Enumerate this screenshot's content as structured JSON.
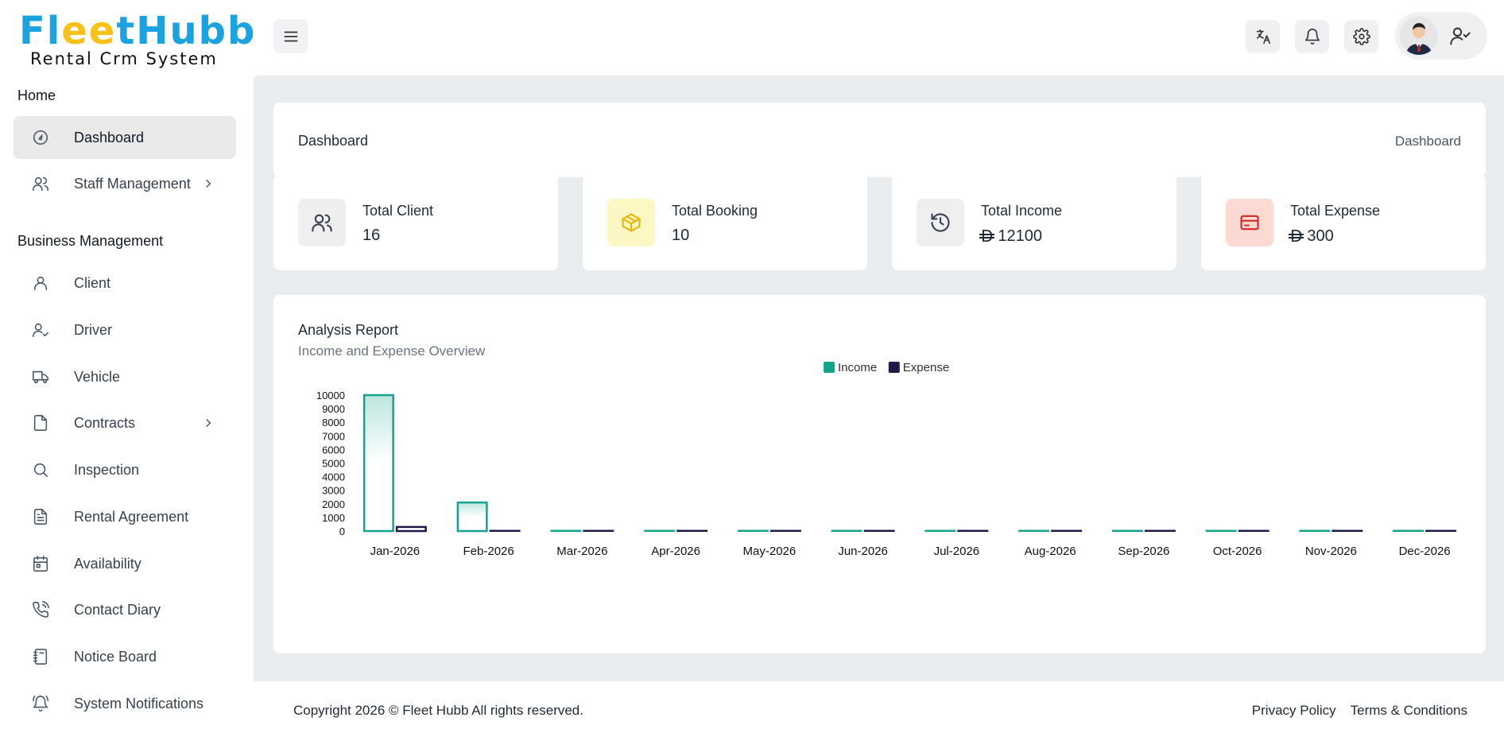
{
  "brand": {
    "logo_main": "FleetHubb",
    "logo_sub": "Rental Crm System"
  },
  "sidebar": {
    "sections": [
      {
        "title": "Home"
      },
      {
        "title": "Business Management"
      }
    ],
    "items": [
      {
        "label": "Dashboard",
        "icon": "gauge-icon"
      },
      {
        "label": "Staff Management",
        "icon": "users-icon"
      },
      {
        "label": "Client",
        "icon": "user-icon"
      },
      {
        "label": "Driver",
        "icon": "user-check-icon"
      },
      {
        "label": "Vehicle",
        "icon": "truck-icon"
      },
      {
        "label": "Contracts",
        "icon": "file-icon"
      },
      {
        "label": "Inspection",
        "icon": "search-icon"
      },
      {
        "label": "Rental Agreement",
        "icon": "file-text-icon"
      },
      {
        "label": "Availability",
        "icon": "calendar-icon"
      },
      {
        "label": "Contact Diary",
        "icon": "phone-icon"
      },
      {
        "label": "Notice Board",
        "icon": "notebook-icon"
      },
      {
        "label": "System Notifications",
        "icon": "bell-ring-icon"
      }
    ]
  },
  "breadcrumb": {
    "title": "Dashboard",
    "link": "Dashboard"
  },
  "stats": [
    {
      "label": "Total Client",
      "value": "16",
      "icon": "users-icon",
      "bg": "#efefef",
      "fg": "#374151"
    },
    {
      "label": "Total Booking",
      "value": "10",
      "icon": "box-icon",
      "bg": "#fdf7c3",
      "fg": "#eab308"
    },
    {
      "label": "Total Income",
      "value": "12100",
      "currency": "D",
      "icon": "history-icon",
      "bg": "#efefef",
      "fg": "#374151"
    },
    {
      "label": "Total Expense",
      "value": "300",
      "currency": "D",
      "icon": "credit-card-icon",
      "bg": "#fdd9d4",
      "fg": "#dc2626"
    }
  ],
  "report": {
    "title": "Analysis Report",
    "subtitle": "Income and Expense Overview"
  },
  "chart_data": {
    "type": "bar",
    "categories": [
      "Jan-2026",
      "Feb-2026",
      "Mar-2026",
      "Apr-2026",
      "May-2026",
      "Jun-2026",
      "Jul-2026",
      "Aug-2026",
      "Sep-2026",
      "Oct-2026",
      "Nov-2026",
      "Dec-2026"
    ],
    "series": [
      {
        "name": "Income",
        "color": "#14a38b",
        "values": [
          10000,
          2100,
          0,
          0,
          0,
          0,
          0,
          0,
          0,
          0,
          0,
          0
        ]
      },
      {
        "name": "Expense",
        "color": "#1e1b4b",
        "values": [
          300,
          0,
          0,
          0,
          0,
          0,
          0,
          0,
          0,
          0,
          0,
          0
        ]
      }
    ],
    "yticks": [
      0,
      1000,
      2000,
      3000,
      4000,
      5000,
      6000,
      7000,
      8000,
      9000,
      10000
    ],
    "ylim": [
      0,
      10000
    ],
    "legend": "top-center",
    "grid": false
  },
  "footer": {
    "copyright": "Copyright 2026 © Fleet Hubb All rights reserved.",
    "privacy": "Privacy Policy",
    "terms": "Terms & Conditions"
  }
}
